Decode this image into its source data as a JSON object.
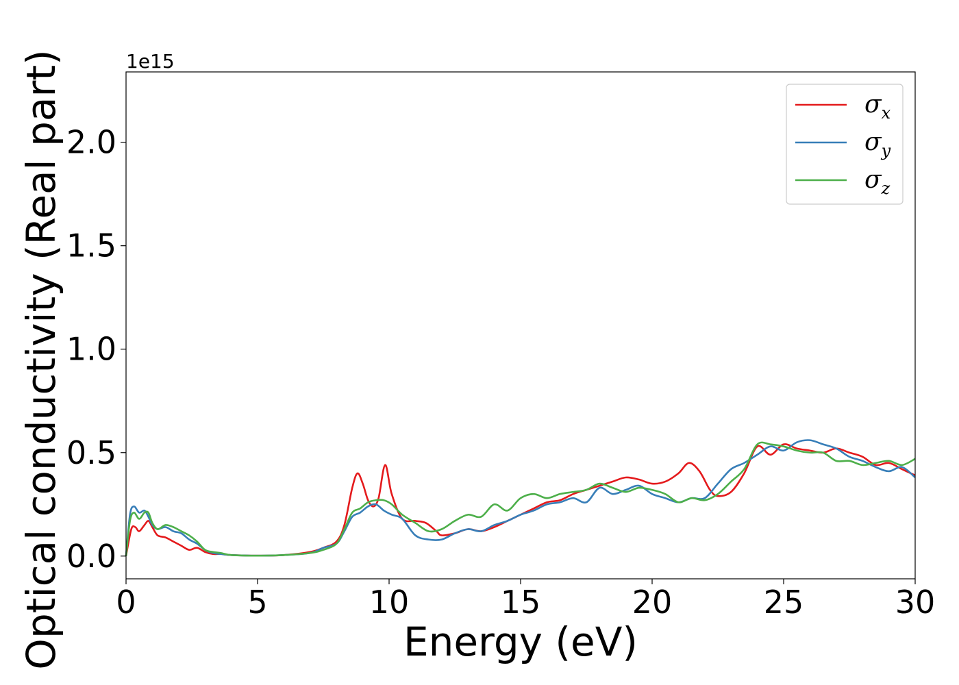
{
  "chart_data": {
    "type": "line",
    "title": "",
    "xlabel": "Energy (eV)",
    "ylabel": "Optical conductivity (Real part)",
    "y_offset_text": "1e15",
    "y_scale": 1000000000000000.0,
    "xlim": [
      0,
      30
    ],
    "ylim": [
      -0.11,
      2.34
    ],
    "xticks": [
      0,
      5,
      10,
      15,
      20,
      25,
      30
    ],
    "xtick_labels": [
      "0",
      "5",
      "10",
      "15",
      "20",
      "25",
      "30"
    ],
    "yticks": [
      0.0,
      0.5,
      1.0,
      1.5,
      2.0
    ],
    "ytick_labels": [
      "0.0",
      "0.5",
      "1.0",
      "1.5",
      "2.0"
    ],
    "grid": false,
    "legend_position": "top-right",
    "series": [
      {
        "name": "σx",
        "symbol": "σ",
        "subscript": "x",
        "color": "#e41a1c",
        "x": [
          0,
          0.2,
          0.35,
          0.5,
          0.7,
          0.85,
          1.0,
          1.2,
          1.5,
          1.8,
          2.1,
          2.4,
          2.7,
          3.0,
          3.3,
          3.6,
          4.0,
          5.0,
          6.0,
          7.0,
          7.5,
          8.0,
          8.3,
          8.6,
          8.8,
          9.0,
          9.2,
          9.4,
          9.6,
          9.85,
          10.1,
          10.5,
          11.0,
          11.4,
          11.8,
          12.0,
          12.5,
          13.0,
          13.5,
          14.0,
          14.5,
          15.0,
          15.5,
          16.0,
          16.5,
          17.0,
          17.5,
          18.0,
          18.5,
          19.0,
          19.5,
          20.0,
          20.5,
          21.0,
          21.4,
          21.8,
          22.2,
          22.5,
          23.0,
          23.5,
          24.0,
          24.5,
          25.0,
          25.5,
          26.0,
          26.5,
          27.0,
          27.5,
          28.0,
          28.5,
          29.0,
          29.5,
          30.0
        ],
        "values": [
          0.0,
          0.13,
          0.14,
          0.12,
          0.15,
          0.17,
          0.14,
          0.1,
          0.09,
          0.07,
          0.05,
          0.03,
          0.04,
          0.02,
          0.01,
          0.01,
          0.005,
          0.002,
          0.005,
          0.02,
          0.04,
          0.07,
          0.15,
          0.33,
          0.4,
          0.35,
          0.27,
          0.24,
          0.28,
          0.44,
          0.3,
          0.18,
          0.17,
          0.16,
          0.12,
          0.1,
          0.11,
          0.13,
          0.12,
          0.14,
          0.17,
          0.2,
          0.23,
          0.26,
          0.27,
          0.3,
          0.32,
          0.34,
          0.36,
          0.38,
          0.37,
          0.35,
          0.36,
          0.4,
          0.45,
          0.41,
          0.32,
          0.29,
          0.31,
          0.4,
          0.53,
          0.49,
          0.54,
          0.52,
          0.51,
          0.5,
          0.52,
          0.5,
          0.48,
          0.44,
          0.45,
          0.42,
          0.39
        ]
      },
      {
        "name": "σy",
        "symbol": "σ",
        "subscript": "y",
        "color": "#377eb8",
        "x": [
          0,
          0.15,
          0.3,
          0.5,
          0.7,
          0.85,
          1.0,
          1.2,
          1.5,
          1.8,
          2.1,
          2.4,
          2.7,
          3.0,
          3.3,
          3.6,
          4.0,
          5.0,
          6.0,
          7.0,
          7.5,
          8.0,
          8.3,
          8.6,
          8.9,
          9.2,
          9.5,
          9.8,
          10.1,
          10.5,
          11.0,
          11.5,
          12.0,
          12.5,
          13.0,
          13.5,
          14.0,
          14.5,
          15.0,
          15.5,
          16.0,
          16.5,
          17.0,
          17.5,
          18.0,
          18.5,
          19.0,
          19.5,
          20.0,
          20.5,
          21.0,
          21.5,
          22.0,
          22.5,
          23.0,
          23.5,
          24.0,
          24.5,
          25.0,
          25.5,
          26.0,
          26.5,
          27.0,
          27.5,
          28.0,
          28.5,
          29.0,
          29.5,
          30.0
        ],
        "values": [
          0.0,
          0.2,
          0.24,
          0.21,
          0.22,
          0.19,
          0.15,
          0.13,
          0.14,
          0.12,
          0.11,
          0.08,
          0.06,
          0.03,
          0.015,
          0.01,
          0.005,
          0.002,
          0.005,
          0.015,
          0.04,
          0.06,
          0.12,
          0.19,
          0.21,
          0.24,
          0.25,
          0.22,
          0.2,
          0.18,
          0.1,
          0.08,
          0.08,
          0.11,
          0.13,
          0.12,
          0.15,
          0.17,
          0.2,
          0.22,
          0.25,
          0.26,
          0.28,
          0.26,
          0.33,
          0.3,
          0.32,
          0.34,
          0.3,
          0.28,
          0.26,
          0.28,
          0.28,
          0.35,
          0.42,
          0.45,
          0.49,
          0.53,
          0.51,
          0.55,
          0.56,
          0.54,
          0.52,
          0.48,
          0.46,
          0.43,
          0.41,
          0.43,
          0.38
        ]
      },
      {
        "name": "σz",
        "symbol": "σ",
        "subscript": "z",
        "color": "#4daf4a",
        "x": [
          0,
          0.15,
          0.3,
          0.5,
          0.7,
          0.85,
          1.0,
          1.2,
          1.5,
          1.8,
          2.1,
          2.4,
          2.7,
          3.0,
          3.3,
          3.6,
          4.0,
          5.0,
          6.0,
          7.0,
          7.5,
          8.0,
          8.3,
          8.6,
          8.9,
          9.2,
          9.5,
          9.8,
          10.1,
          10.5,
          11.0,
          11.5,
          12.0,
          12.5,
          13.0,
          13.5,
          14.0,
          14.5,
          15.0,
          15.5,
          16.0,
          16.5,
          17.0,
          17.5,
          18.0,
          18.5,
          19.0,
          19.5,
          20.0,
          20.5,
          21.0,
          21.5,
          22.0,
          22.5,
          23.0,
          23.5,
          24.0,
          24.5,
          25.0,
          25.5,
          26.0,
          26.5,
          27.0,
          27.5,
          28.0,
          28.5,
          29.0,
          29.5,
          30.0
        ],
        "values": [
          0.0,
          0.17,
          0.21,
          0.18,
          0.21,
          0.21,
          0.16,
          0.13,
          0.15,
          0.14,
          0.12,
          0.1,
          0.07,
          0.03,
          0.02,
          0.015,
          0.005,
          0.002,
          0.005,
          0.015,
          0.03,
          0.06,
          0.13,
          0.21,
          0.23,
          0.26,
          0.27,
          0.27,
          0.25,
          0.2,
          0.16,
          0.12,
          0.13,
          0.17,
          0.2,
          0.19,
          0.25,
          0.22,
          0.28,
          0.3,
          0.28,
          0.3,
          0.31,
          0.32,
          0.35,
          0.33,
          0.31,
          0.33,
          0.32,
          0.3,
          0.26,
          0.28,
          0.27,
          0.3,
          0.36,
          0.42,
          0.54,
          0.54,
          0.53,
          0.51,
          0.5,
          0.5,
          0.46,
          0.46,
          0.44,
          0.45,
          0.46,
          0.44,
          0.47
        ]
      }
    ]
  }
}
